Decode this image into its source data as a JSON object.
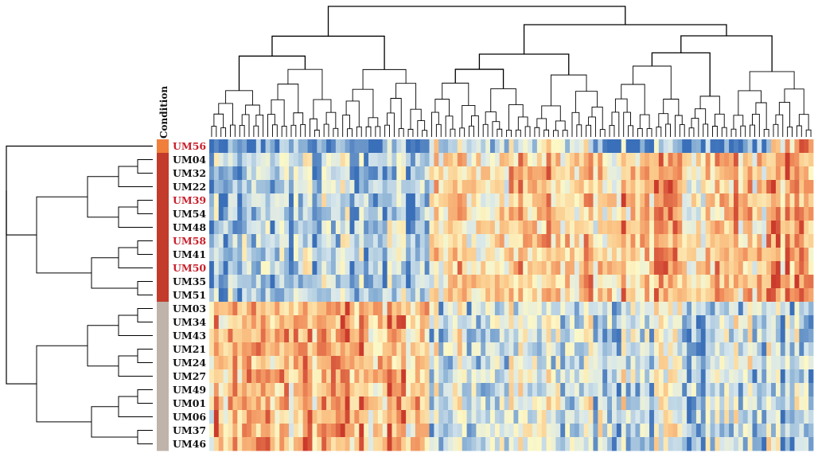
{
  "chart_data": {
    "type": "heatmap",
    "title": "",
    "annotation_title": "Condition",
    "rows": [
      "UM56",
      "UM04",
      "UM32",
      "UM22",
      "UM39",
      "UM54",
      "UM48",
      "UM58",
      "UM41",
      "UM50",
      "UM35",
      "UM51",
      "UM03",
      "UM34",
      "UM43",
      "UM21",
      "UM24",
      "UM27",
      "UM49",
      "UM01",
      "UM06",
      "UM37",
      "UM46"
    ],
    "highlighted_rows": [
      "UM56",
      "UM39",
      "UM58",
      "UM50"
    ],
    "row_conditions": [
      "orange",
      "red",
      "red",
      "red",
      "red",
      "red",
      "red",
      "red",
      "red",
      "red",
      "red",
      "red",
      "taupe",
      "taupe",
      "taupe",
      "taupe",
      "taupe",
      "taupe",
      "taupe",
      "taupe",
      "taupe",
      "taupe",
      "taupe"
    ],
    "n_columns": 129,
    "col_block_sizes": [
      47,
      38,
      35,
      9
    ],
    "row_group_profiles": {
      "orange": [
        0.05,
        0.35,
        0.1,
        0.75
      ],
      "red": [
        0.25,
        0.6,
        0.65,
        0.75
      ],
      "taupe": [
        0.68,
        0.35,
        0.35,
        0.25
      ]
    },
    "value_range": [
      0,
      1
    ],
    "dendrogram_rows": true,
    "dendrogram_columns": true
  },
  "colors": {
    "condition": {
      "orange": "#F07F3B",
      "red": "#C23B2B",
      "taupe": "#BFB3AA"
    },
    "highlight_text": "#C8202C",
    "normal_text": "#111111",
    "scale": [
      "#3A6FB9",
      "#8DB3D6",
      "#D6E6EC",
      "#FCF8C6",
      "#FBC889",
      "#F08D5B",
      "#CB3A2B"
    ]
  }
}
